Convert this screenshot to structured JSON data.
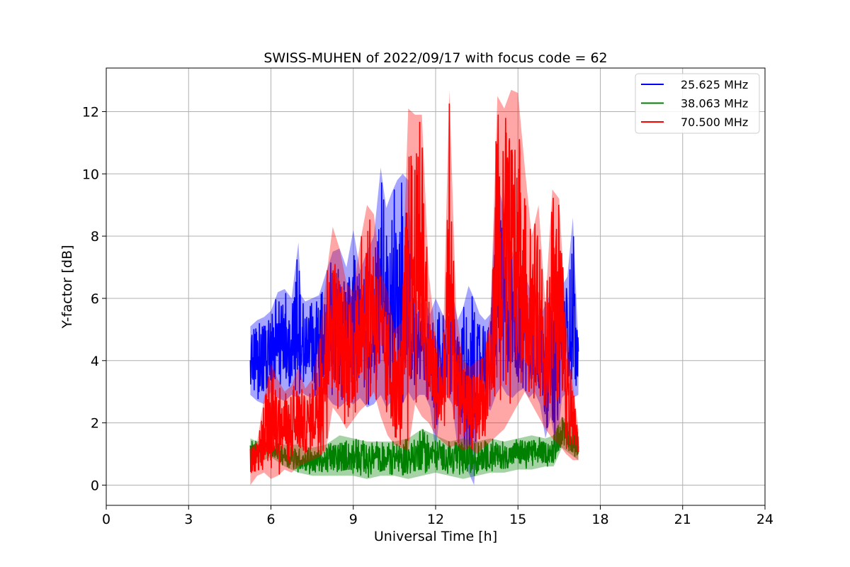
{
  "chart_data": {
    "type": "line",
    "title": "SWISS-MUHEN of 2022/09/17 with focus code = 62",
    "xlabel": "Universal Time [h]",
    "ylabel": "Y-factor [dB]",
    "xlim": [
      0,
      24
    ],
    "ylim": [
      -0.65,
      13.4
    ],
    "xticks": [
      0,
      3,
      6,
      9,
      12,
      15,
      18,
      21,
      24
    ],
    "yticks": [
      0,
      2,
      4,
      6,
      8,
      10,
      12
    ],
    "grid": true,
    "legend_position": "top-right",
    "series": [
      {
        "name": "25.625 MHz",
        "color": "#0000ff",
        "x": [
          5.25,
          5.5,
          5.75,
          6.0,
          6.25,
          6.5,
          6.75,
          7.0,
          7.1,
          7.25,
          7.5,
          7.75,
          8.0,
          8.25,
          8.5,
          8.75,
          9.0,
          9.25,
          9.5,
          9.75,
          10.0,
          10.2,
          10.4,
          10.6,
          10.8,
          11.0,
          11.2,
          11.4,
          11.6,
          11.8,
          12.0,
          12.2,
          12.4,
          12.6,
          12.8,
          13.0,
          13.2,
          13.4,
          13.6,
          13.8,
          14.0,
          14.2,
          14.4,
          14.6,
          14.8,
          15.0,
          15.2,
          15.4,
          15.6,
          15.8,
          16.0,
          16.2,
          16.4,
          16.6,
          16.8,
          17.0,
          17.2
        ],
        "y_low": [
          2.9,
          2.7,
          2.6,
          3.0,
          2.8,
          2.7,
          2.9,
          2.8,
          3.0,
          2.9,
          2.8,
          2.9,
          2.9,
          2.6,
          2.5,
          2.7,
          2.6,
          2.8,
          2.5,
          2.6,
          2.9,
          2.5,
          2.7,
          2.8,
          2.6,
          3.0,
          2.7,
          2.9,
          2.9,
          2.5,
          1.0,
          2.8,
          2.9,
          2.6,
          1.2,
          0.8,
          0.4,
          0.0,
          2.6,
          2.5,
          2.4,
          2.9,
          3.2,
          2.9,
          2.8,
          3.0,
          3.1,
          2.8,
          3.0,
          2.6,
          1.5,
          2.2,
          1.0,
          2.8,
          3.0,
          2.8,
          2.9
        ],
        "y_high": [
          5.1,
          5.3,
          5.4,
          5.6,
          6.2,
          6.3,
          6.0,
          7.8,
          6.1,
          5.9,
          6.0,
          6.1,
          6.8,
          7.5,
          7.6,
          7.0,
          8.2,
          6.9,
          7.5,
          8.0,
          10.2,
          8.9,
          9.4,
          9.8,
          10.0,
          9.8,
          6.2,
          5.8,
          6.0,
          5.5,
          6.0,
          5.6,
          5.2,
          6.3,
          5.3,
          5.7,
          6.4,
          6.0,
          5.5,
          5.3,
          5.5,
          9.8,
          9.2,
          8.2,
          7.5,
          6.8,
          6.8,
          6.4,
          5.7,
          5.4,
          5.8,
          6.2,
          5.5,
          6.4,
          6.7,
          8.6,
          4.5
        ]
      },
      {
        "name": "38.063 MHz",
        "color": "#008000",
        "x": [
          5.25,
          5.5,
          5.75,
          6.0,
          6.5,
          7.0,
          7.5,
          8.0,
          8.5,
          9.0,
          9.5,
          10.0,
          10.5,
          11.0,
          11.5,
          12.0,
          12.5,
          13.0,
          13.5,
          14.0,
          14.5,
          15.0,
          15.5,
          16.0,
          16.3,
          16.6,
          16.9,
          17.2
        ],
        "y_low": [
          0.6,
          0.7,
          0.8,
          0.9,
          0.6,
          0.4,
          0.3,
          0.3,
          0.3,
          0.3,
          0.2,
          0.3,
          0.3,
          0.2,
          0.3,
          0.4,
          0.3,
          0.2,
          0.3,
          0.4,
          0.4,
          0.5,
          0.5,
          0.6,
          0.6,
          1.2,
          1.0,
          0.8
        ],
        "y_high": [
          1.5,
          1.4,
          1.5,
          1.4,
          1.3,
          1.3,
          1.2,
          1.3,
          1.6,
          1.5,
          1.4,
          1.4,
          1.4,
          1.5,
          1.8,
          1.6,
          1.4,
          1.5,
          1.4,
          1.5,
          1.4,
          1.5,
          1.6,
          1.5,
          1.6,
          2.2,
          2.0,
          1.8
        ]
      },
      {
        "name": "70.500 MHz",
        "color": "#ff0000",
        "x": [
          5.25,
          5.5,
          5.75,
          6.0,
          6.25,
          6.5,
          6.75,
          7.0,
          7.25,
          7.5,
          7.75,
          8.0,
          8.25,
          8.5,
          8.75,
          9.0,
          9.25,
          9.5,
          9.75,
          10.0,
          10.25,
          10.5,
          10.75,
          11.0,
          11.25,
          11.5,
          11.75,
          12.0,
          12.25,
          12.5,
          12.75,
          13.0,
          13.25,
          13.5,
          13.75,
          14.0,
          14.25,
          14.5,
          14.75,
          15.0,
          15.25,
          15.5,
          15.75,
          16.0,
          16.25,
          16.5,
          16.75,
          17.0,
          17.2
        ],
        "y_low": [
          0.0,
          0.3,
          0.4,
          0.2,
          0.3,
          0.5,
          0.4,
          0.6,
          0.7,
          0.8,
          0.9,
          1.1,
          2.5,
          2.2,
          1.8,
          2.1,
          2.4,
          2.6,
          3.0,
          2.2,
          1.6,
          1.3,
          1.2,
          1.1,
          2.6,
          2.2,
          2.0,
          1.6,
          1.4,
          1.2,
          1.3,
          1.1,
          1.2,
          1.0,
          1.2,
          1.4,
          1.6,
          1.8,
          2.2,
          2.6,
          3.0,
          2.6,
          2.2,
          1.8,
          1.5,
          1.3,
          1.0,
          0.8,
          0.8
        ],
        "y_high": [
          1.2,
          1.4,
          2.8,
          3.9,
          3.4,
          3.0,
          3.2,
          3.8,
          3.1,
          3.4,
          4.6,
          6.6,
          8.3,
          7.6,
          6.5,
          6.2,
          7.8,
          9.0,
          8.7,
          6.8,
          6.2,
          5.0,
          5.2,
          12.1,
          11.9,
          11.9,
          6.8,
          4.8,
          3.8,
          12.7,
          5.6,
          4.0,
          3.8,
          4.0,
          4.1,
          5.5,
          12.5,
          12.1,
          12.7,
          12.6,
          10.2,
          8.0,
          9.0,
          5.8,
          9.5,
          9.2,
          5.2,
          3.2,
          1.8
        ]
      }
    ]
  }
}
